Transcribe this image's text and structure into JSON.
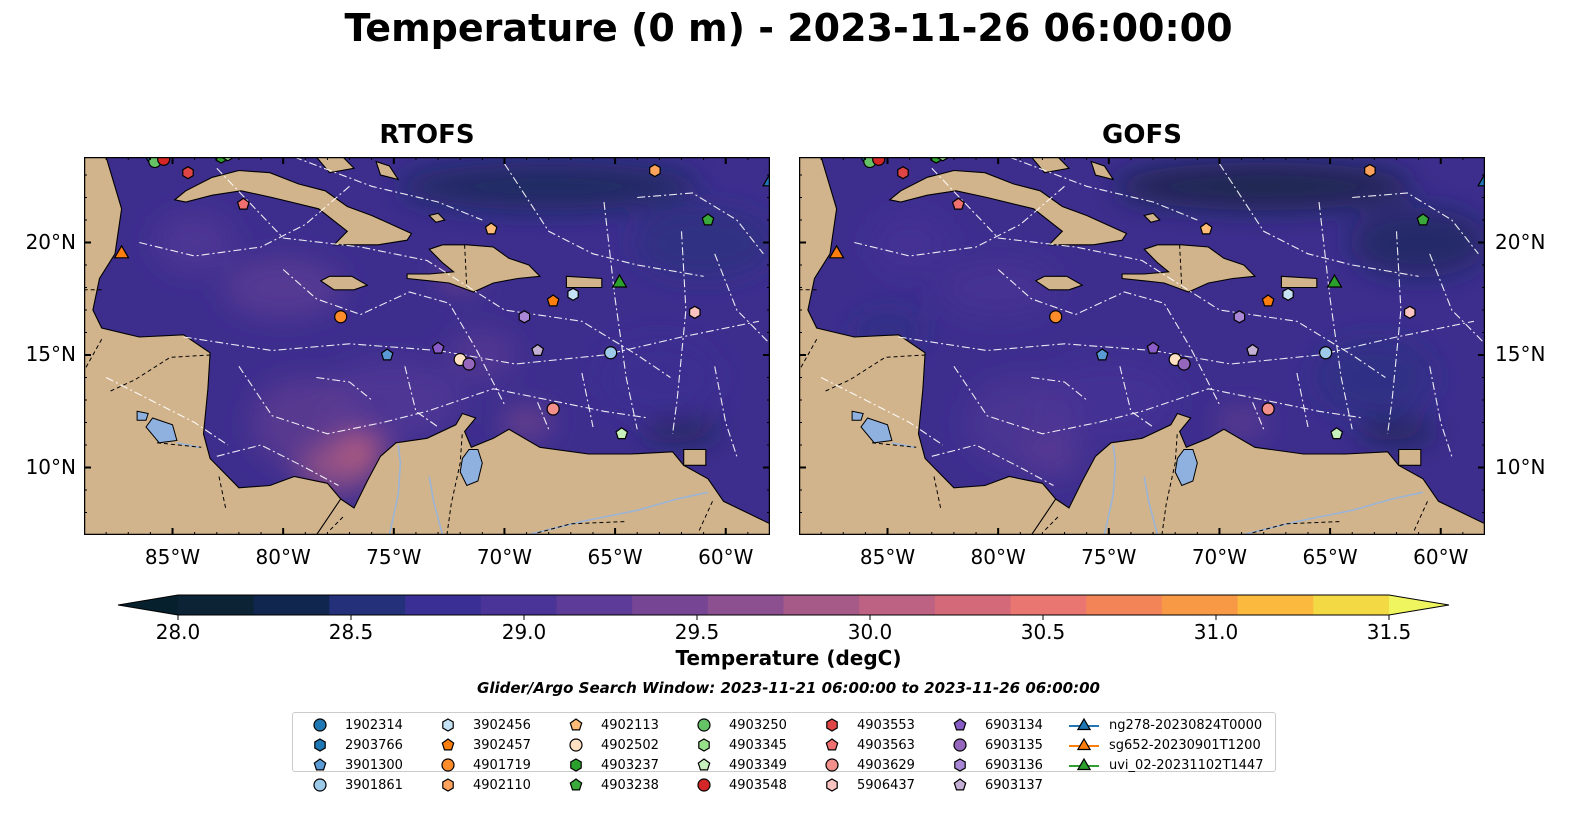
{
  "figure": {
    "title": "Temperature (0 m) - 2023-11-26 06:00:00",
    "search_window": "Glider/Argo Search Window: 2023-11-21 06:00:00 to 2023-11-26 06:00:00"
  },
  "panels": [
    {
      "title": "RTOFS",
      "model": "rtofs"
    },
    {
      "title": "GOFS",
      "model": "gofs"
    }
  ],
  "map_extent": {
    "lon_min": -89,
    "lon_max": -58,
    "lat_min": 7,
    "lat_max": 23.8
  },
  "axes": {
    "lon_ticks": [
      {
        "lon": -85,
        "label": "85°W"
      },
      {
        "lon": -80,
        "label": "80°W"
      },
      {
        "lon": -75,
        "label": "75°W"
      },
      {
        "lon": -70,
        "label": "70°W"
      },
      {
        "lon": -65,
        "label": "65°W"
      },
      {
        "lon": -60,
        "label": "60°W"
      }
    ],
    "lat_ticks": [
      {
        "lat": 20,
        "label": "20°N"
      },
      {
        "lat": 15,
        "label": "15°N"
      },
      {
        "lat": 10,
        "label": "10°N"
      }
    ]
  },
  "colorbar": {
    "label": "Temperature (degC)",
    "min": 28.0,
    "max": 31.5,
    "step": 0.25,
    "ticks": [
      {
        "value": 28.0,
        "label": "28.0"
      },
      {
        "value": 28.5,
        "label": "28.5"
      },
      {
        "value": 29.0,
        "label": "29.0"
      },
      {
        "value": 29.5,
        "label": "29.5"
      },
      {
        "value": 30.0,
        "label": "30.0"
      },
      {
        "value": 30.5,
        "label": "30.5"
      },
      {
        "value": 31.0,
        "label": "31.0"
      },
      {
        "value": 31.5,
        "label": "31.5"
      }
    ],
    "colors": [
      "#0c2336",
      "#11264f",
      "#25307b",
      "#392f94",
      "#4b3498",
      "#5d3b99",
      "#764593",
      "#8c5090",
      "#a65a88",
      "#bd6282",
      "#d4697a",
      "#e97670",
      "#f38458",
      "#f89a45",
      "#fbb93d",
      "#f3da45"
    ],
    "extend_low": "#06202e",
    "extend_high": "#eff55f"
  },
  "land_color": "#d2b48c",
  "ocean_base": "#3d2e8e",
  "platforms": [
    {
      "name": "1902314",
      "marker": "circle",
      "color": "#1f77b4",
      "lon": -85.9,
      "lat": 23.8
    },
    {
      "name": "2903766",
      "marker": "hexagon",
      "color": "#1f77b4",
      "lon": -85.6,
      "lat": 23.8
    },
    {
      "name": "3901300",
      "marker": "pentagon",
      "color": "#5b9bd5",
      "lon": -75.3,
      "lat": 15.0
    },
    {
      "name": "3901861",
      "marker": "circle",
      "color": "#9ecae9",
      "lon": -65.2,
      "lat": 15.1
    },
    {
      "name": "3902456",
      "marker": "hexagon",
      "color": "#c6e2f5",
      "lon": -66.9,
      "lat": 17.7
    },
    {
      "name": "3902457",
      "marker": "pentagon",
      "color": "#ff7f0e",
      "lon": -67.8,
      "lat": 17.4
    },
    {
      "name": "4901719",
      "marker": "circle",
      "color": "#ff8c2a",
      "lon": -77.4,
      "lat": 16.7
    },
    {
      "name": "4902110",
      "marker": "hexagon",
      "color": "#ffa35c",
      "lon": -63.2,
      "lat": 23.2
    },
    {
      "name": "4902113",
      "marker": "pentagon",
      "color": "#ffbb78",
      "lon": -70.6,
      "lat": 20.6
    },
    {
      "name": "4902502",
      "marker": "circle",
      "color": "#ffe0c2",
      "lon": -72.0,
      "lat": 14.8
    },
    {
      "name": "4903237",
      "marker": "hexagon",
      "color": "#2ca02c",
      "lon": -82.8,
      "lat": 23.8
    },
    {
      "name": "4903238",
      "marker": "pentagon",
      "color": "#3aa83a",
      "lon": -60.8,
      "lat": 21.0
    },
    {
      "name": "4903250",
      "marker": "circle",
      "color": "#66c266",
      "lon": -85.8,
      "lat": 23.6
    },
    {
      "name": "4903345",
      "marker": "hexagon",
      "color": "#98df8a",
      "lon": -82.5,
      "lat": 23.9
    },
    {
      "name": "4903349",
      "marker": "pentagon",
      "color": "#c7f0bd",
      "lon": -64.7,
      "lat": 11.5
    },
    {
      "name": "4903548",
      "marker": "circle",
      "color": "#d62728",
      "lon": -85.4,
      "lat": 23.7
    },
    {
      "name": "4903553",
      "marker": "hexagon",
      "color": "#e04546",
      "lon": -84.3,
      "lat": 23.1
    },
    {
      "name": "4903563",
      "marker": "pentagon",
      "color": "#f07070",
      "lon": -81.8,
      "lat": 21.7
    },
    {
      "name": "4903629",
      "marker": "circle",
      "color": "#f4908c",
      "lon": -67.8,
      "lat": 12.6
    },
    {
      "name": "5906437",
      "marker": "hexagon",
      "color": "#fbc4c0",
      "lon": -61.4,
      "lat": 16.9
    },
    {
      "name": "6903134",
      "marker": "pentagon",
      "color": "#8a5cc7",
      "lon": -73.0,
      "lat": 15.3
    },
    {
      "name": "6903135",
      "marker": "circle",
      "color": "#9467bd",
      "lon": -71.6,
      "lat": 14.6
    },
    {
      "name": "6903136",
      "marker": "hexagon",
      "color": "#a987d6",
      "lon": -69.1,
      "lat": 16.7
    },
    {
      "name": "6903137",
      "marker": "pentagon",
      "color": "#c5b0d5",
      "lon": -68.5,
      "lat": 15.2
    }
  ],
  "gliders": [
    {
      "name": "ng278-20230824T0000",
      "color": "#1f77b4",
      "lon": -58.0,
      "lat": 22.7
    },
    {
      "name": "sg652-20230901T1200",
      "color": "#ff7f0e",
      "lon": -87.3,
      "lat": 19.5
    },
    {
      "name": "uvi_02-20231102T1447",
      "color": "#2ca02c",
      "lon": -64.8,
      "lat": 18.2
    }
  ]
}
